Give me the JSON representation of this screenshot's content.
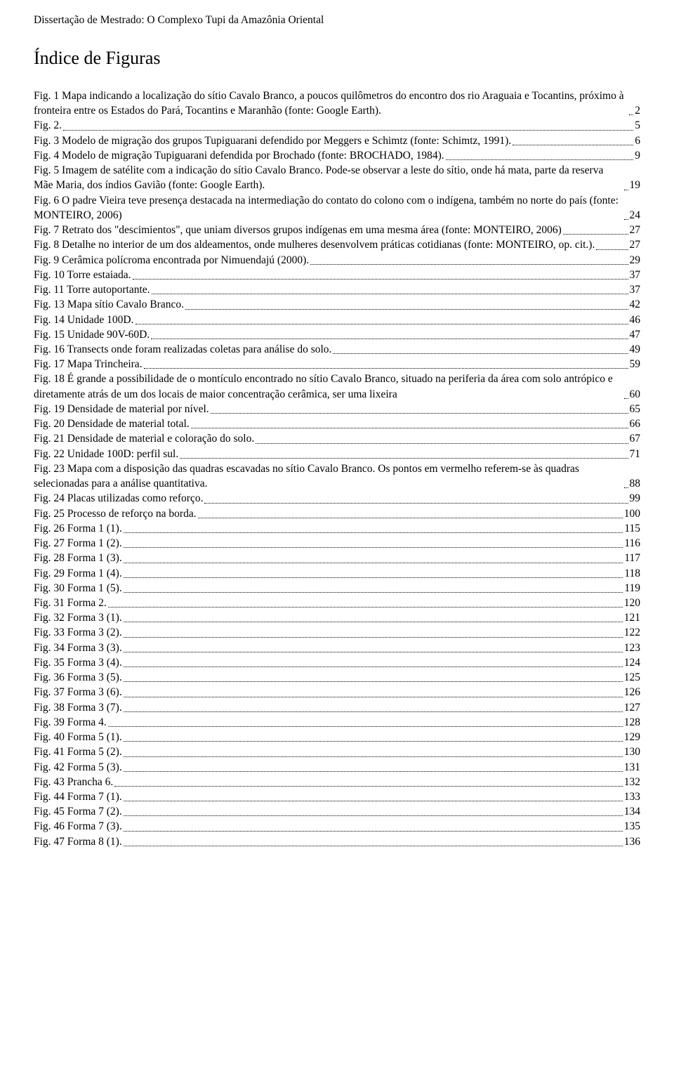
{
  "header": "Dissertação de Mestrado: O Complexo Tupi da Amazônia Oriental",
  "title": "Índice de Figuras",
  "entries": [
    {
      "text": "Fig. 1 Mapa indicando a localização do sítio Cavalo Branco, a poucos quilômetros do encontro dos rio Araguaia e Tocantins, próximo à fronteira entre os Estados do Pará, Tocantins e Maranhão (fonte: Google Earth).",
      "page": "2"
    },
    {
      "text": "Fig. 2.",
      "page": "5"
    },
    {
      "text": "Fig. 3 Modelo de migração dos grupos Tupiguarani defendido por Meggers e Schimtz (fonte: Schimtz, 1991).",
      "page": "6"
    },
    {
      "text": "Fig. 4 Modelo de migração Tupiguarani defendida por Brochado (fonte: BROCHADO, 1984).",
      "page": "9"
    },
    {
      "text": "Fig. 5 Imagem de satélite com a indicação do sítio Cavalo Branco. Pode-se observar a leste do sítio, onde há mata, parte da reserva Mãe Maria, dos índios Gavião (fonte: Google Earth).",
      "page": "19"
    },
    {
      "text": "Fig. 6 O padre Vieira teve presença destacada na intermediação do contato do colono com o indígena, também no norte do país (fonte: MONTEIRO, 2006)",
      "page": "24"
    },
    {
      "text": "Fig. 7 Retrato dos \"descimientos\", que uniam diversos grupos indígenas em uma mesma área (fonte: MONTEIRO, 2006)",
      "page": "27"
    },
    {
      "text": "Fig. 8 Detalhe no interior de um dos aldeamentos, onde mulheres desenvolvem práticas cotidianas (fonte: MONTEIRO, op. cit.).",
      "page": "27"
    },
    {
      "text": "Fig. 9 Cerâmica polícroma encontrada por Nimuendajú (2000).",
      "page": "29"
    },
    {
      "text": "Fig. 10 Torre estaiada.",
      "page": "37"
    },
    {
      "text": "Fig. 11 Torre autoportante.",
      "page": "37"
    },
    {
      "text": "Fig. 13 Mapa sítio Cavalo Branco.",
      "page": "42"
    },
    {
      "text": "Fig. 14 Unidade 100D.",
      "page": "46"
    },
    {
      "text": "Fig. 15 Unidade 90V-60D.",
      "page": "47"
    },
    {
      "text": "Fig. 16 Transects onde foram realizadas coletas para análise do solo.",
      "page": "49"
    },
    {
      "text": "Fig. 17 Mapa Trincheira.",
      "page": "59"
    },
    {
      "text": "Fig. 18 É grande a possibilidade de o montículo encontrado no sítio Cavalo Branco, situado na periferia da área com solo antrópico e diretamente atrás de um dos locais de maior concentração cerâmica, ser uma lixeira",
      "page": "60"
    },
    {
      "text": "Fig. 19 Densidade de material por nível.",
      "page": "65"
    },
    {
      "text": "Fig. 20 Densidade de material total.",
      "page": "66"
    },
    {
      "text": "Fig. 21 Densidade de material e coloração do solo.",
      "page": "67"
    },
    {
      "text": "Fig. 22 Unidade 100D: perfil sul.",
      "page": "71"
    },
    {
      "text": "Fig. 23 Mapa com a disposição das quadras escavadas no sítio Cavalo Branco. Os pontos em vermelho referem-se às quadras selecionadas para a análise quantitativa.",
      "page": "88"
    },
    {
      "text": "Fig. 24 Placas utilizadas como reforço.",
      "page": "99"
    },
    {
      "text": "Fig. 25 Processo de reforço na borda.",
      "page": "100"
    },
    {
      "text": "Fig. 26 Forma 1 (1).",
      "page": "115"
    },
    {
      "text": "Fig. 27 Forma 1 (2).",
      "page": "116"
    },
    {
      "text": "Fig. 28 Forma 1 (3).",
      "page": "117"
    },
    {
      "text": "Fig. 29 Forma 1 (4).",
      "page": "118"
    },
    {
      "text": "Fig. 30 Forma 1 (5).",
      "page": "119"
    },
    {
      "text": "Fig. 31 Forma 2.",
      "page": "120"
    },
    {
      "text": "Fig. 32 Forma 3 (1).",
      "page": "121"
    },
    {
      "text": "Fig. 33 Forma 3 (2).",
      "page": "122"
    },
    {
      "text": "Fig. 34 Forma 3 (3).",
      "page": "123"
    },
    {
      "text": "Fig. 35 Forma 3 (4).",
      "page": "124"
    },
    {
      "text": "Fig. 36 Forma 3 (5).",
      "page": "125"
    },
    {
      "text": "Fig. 37 Forma 3 (6).",
      "page": "126"
    },
    {
      "text": "Fig. 38 Forma 3 (7).",
      "page": "127"
    },
    {
      "text": "Fig. 39 Forma 4.",
      "page": "128"
    },
    {
      "text": "Fig. 40 Forma 5 (1).",
      "page": "129"
    },
    {
      "text": "Fig. 41 Forma 5 (2).",
      "page": "130"
    },
    {
      "text": "Fig. 42 Forma 5 (3).",
      "page": "131"
    },
    {
      "text": "Fig. 43 Prancha 6.",
      "page": "132"
    },
    {
      "text": "Fig. 44 Forma 7 (1).",
      "page": "133"
    },
    {
      "text": "Fig. 45 Forma 7 (2).",
      "page": "134"
    },
    {
      "text": "Fig. 46 Forma 7 (3).",
      "page": "135"
    },
    {
      "text": "Fig. 47 Forma 8 (1).",
      "page": "136"
    }
  ]
}
